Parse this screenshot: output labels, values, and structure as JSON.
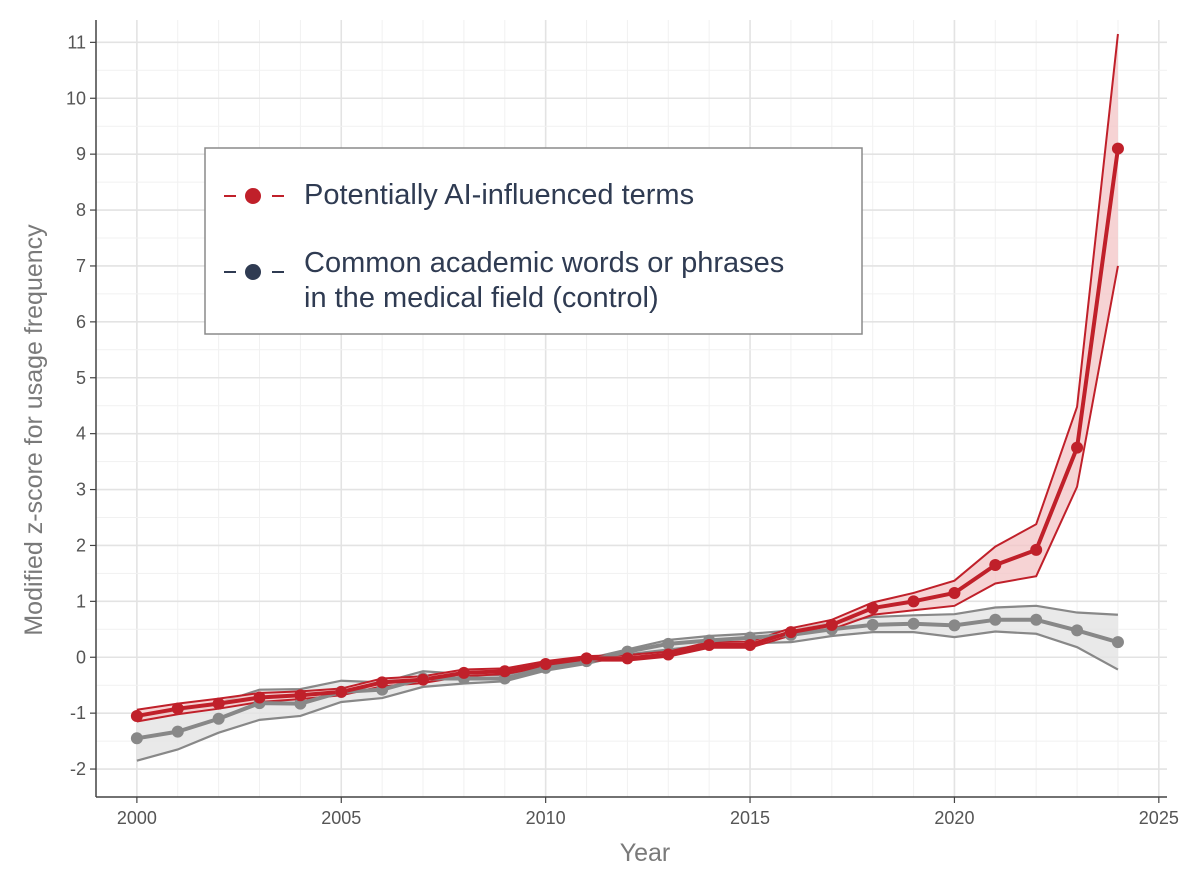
{
  "chart_data": {
    "type": "line",
    "xlabel": "Year",
    "ylabel": "Modified z-score for usage frequency",
    "xlim": [
      1999,
      2025.2
    ],
    "ylim": [
      -2.5,
      11.4
    ],
    "xticks": [
      2000,
      2005,
      2010,
      2015,
      2020,
      2025
    ],
    "yticks": [
      -2,
      -1,
      0,
      1,
      2,
      3,
      4,
      5,
      6,
      7,
      8,
      9,
      10,
      11
    ],
    "grid": true,
    "legend_position": "upper-left",
    "x": [
      2000,
      2001,
      2002,
      2003,
      2004,
      2005,
      2006,
      2007,
      2008,
      2009,
      2010,
      2011,
      2012,
      2013,
      2014,
      2015,
      2016,
      2017,
      2018,
      2019,
      2020,
      2021,
      2022,
      2023,
      2024
    ],
    "series": [
      {
        "name": "Potentially AI-influenced terms",
        "color": "#c0202a",
        "fill": "#f3c4c6",
        "values": [
          -1.05,
          -0.92,
          -0.83,
          -0.72,
          -0.68,
          -0.62,
          -0.45,
          -0.4,
          -0.28,
          -0.25,
          -0.12,
          -0.02,
          -0.02,
          0.05,
          0.22,
          0.22,
          0.45,
          0.58,
          0.88,
          1.0,
          1.15,
          1.65,
          1.92,
          3.75,
          9.1
        ],
        "lower": [
          -1.15,
          -1.02,
          -0.92,
          -0.8,
          -0.75,
          -0.68,
          -0.52,
          -0.46,
          -0.34,
          -0.3,
          -0.17,
          -0.06,
          -0.06,
          0.01,
          0.17,
          0.17,
          0.39,
          0.5,
          0.76,
          0.84,
          0.92,
          1.32,
          1.45,
          3.05,
          7.0
        ],
        "upper": [
          -0.94,
          -0.83,
          -0.74,
          -0.64,
          -0.61,
          -0.56,
          -0.38,
          -0.34,
          -0.22,
          -0.2,
          -0.07,
          0.02,
          0.04,
          0.1,
          0.27,
          0.28,
          0.52,
          0.67,
          0.98,
          1.15,
          1.37,
          1.98,
          2.38,
          4.48,
          11.15
        ]
      },
      {
        "name": "Common academic words or phrases in the medical field (control)",
        "color": "#888888",
        "fill": "#e4e4e4",
        "values": [
          -1.45,
          -1.33,
          -1.1,
          -0.82,
          -0.83,
          -0.62,
          -0.58,
          -0.38,
          -0.38,
          -0.38,
          -0.19,
          -0.07,
          0.1,
          0.24,
          0.3,
          0.35,
          0.4,
          0.5,
          0.58,
          0.6,
          0.57,
          0.67,
          0.67,
          0.48,
          0.27
        ],
        "lower": [
          -1.85,
          -1.65,
          -1.35,
          -1.12,
          -1.05,
          -0.8,
          -0.73,
          -0.53,
          -0.47,
          -0.43,
          -0.24,
          -0.12,
          0.05,
          0.14,
          0.22,
          0.25,
          0.27,
          0.38,
          0.45,
          0.45,
          0.36,
          0.46,
          0.42,
          0.18,
          -0.22
        ],
        "upper": [
          -1.05,
          -0.95,
          -0.82,
          -0.58,
          -0.57,
          -0.42,
          -0.45,
          -0.25,
          -0.3,
          -0.32,
          -0.14,
          -0.03,
          0.14,
          0.31,
          0.38,
          0.42,
          0.48,
          0.62,
          0.72,
          0.75,
          0.77,
          0.89,
          0.92,
          0.8,
          0.76
        ]
      }
    ],
    "legend": {
      "entries": [
        {
          "lines": [
            "Potentially AI-influenced terms"
          ],
          "marker_color": "#c0202a"
        },
        {
          "lines": [
            "Common academic words or phrases",
            "in the medical field (control)"
          ],
          "marker_color": "#2f3b52"
        }
      ]
    }
  }
}
